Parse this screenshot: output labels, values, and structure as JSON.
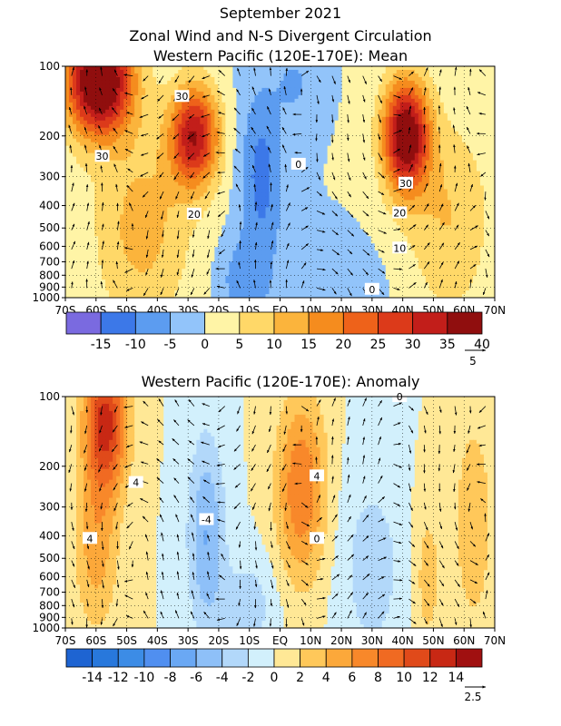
{
  "figure": {
    "title_line1": "September 2021",
    "title_line2": "Zonal Wind and N-S Divergent Circulation",
    "title_line3": "Western Pacific (120E-170E): Mean",
    "panel2_title": "Western Pacific (120E-170E): Anomaly",
    "mean_vector_ref": "5",
    "anom_vector_ref": "2.5"
  },
  "chart_data": [
    {
      "type": "heatmap",
      "title": "Western Pacific (120E-170E): Mean",
      "x_ticks": [
        "70S",
        "60S",
        "50S",
        "40S",
        "30S",
        "20S",
        "10S",
        "EQ",
        "10N",
        "20N",
        "30N",
        "40N",
        "50N",
        "60N",
        "70N"
      ],
      "x_values": [
        -70,
        -60,
        -50,
        -40,
        -30,
        -20,
        -10,
        0,
        10,
        20,
        30,
        40,
        50,
        60,
        70
      ],
      "y_ticks": [
        "100",
        "200",
        "300",
        "400",
        "500",
        "600",
        "700",
        "800",
        "900",
        "1000"
      ],
      "y_values_hPa": [
        100,
        200,
        300,
        400,
        500,
        600,
        700,
        800,
        900,
        1000
      ],
      "y_scale": "log",
      "xlim": [
        -70,
        70
      ],
      "ylim_hPa": [
        1000,
        100
      ],
      "grid": true,
      "colorbar": {
        "labels": [
          "-15",
          "-10",
          "-5",
          "0",
          "5",
          "10",
          "15",
          "20",
          "25",
          "30",
          "35",
          "40"
        ],
        "levels": [
          -20,
          -15,
          -10,
          -5,
          0,
          5,
          10,
          15,
          20,
          25,
          30,
          35,
          40,
          45
        ],
        "colors": [
          "#7a6ae0",
          "#3c78e8",
          "#5c9cf0",
          "#92c4fa",
          "#fff4a6",
          "#ffd868",
          "#fbb43c",
          "#f58c1e",
          "#ee621a",
          "#dc3a1a",
          "#c21e1a",
          "#900e0e"
        ]
      },
      "contour_labels": [
        {
          "text": "30",
          "lat": -32,
          "p": 135
        },
        {
          "text": "30",
          "lat": -58,
          "p": 245
        },
        {
          "text": "20",
          "lat": -28,
          "p": 435
        },
        {
          "text": "0",
          "lat": 6,
          "p": 265
        },
        {
          "text": "30",
          "lat": 41,
          "p": 320
        },
        {
          "text": "20",
          "lat": 39,
          "p": 430
        },
        {
          "text": "10",
          "lat": 39,
          "p": 610
        },
        {
          "text": "0",
          "lat": 30,
          "p": 920
        }
      ],
      "features": [
        {
          "name": "southern westerly jet",
          "lat": -59,
          "p": 110,
          "max": 45
        },
        {
          "name": "subtropical jet south",
          "lat": -28,
          "p": 200,
          "max": 37
        },
        {
          "name": "subtropical jet north",
          "lat": 41,
          "p": 200,
          "max": 42
        },
        {
          "name": "equatorial easterlies",
          "lat": -6,
          "p": 280,
          "min": -12
        }
      ]
    },
    {
      "type": "heatmap",
      "title": "Western Pacific (120E-170E): Anomaly",
      "x_ticks": [
        "70S",
        "60S",
        "50S",
        "40S",
        "30S",
        "20S",
        "10S",
        "EQ",
        "10N",
        "20N",
        "30N",
        "40N",
        "50N",
        "60N",
        "70N"
      ],
      "x_values": [
        -70,
        -60,
        -50,
        -40,
        -30,
        -20,
        -10,
        0,
        10,
        20,
        30,
        40,
        50,
        60,
        70
      ],
      "y_ticks": [
        "100",
        "200",
        "300",
        "400",
        "500",
        "600",
        "700",
        "800",
        "900",
        "1000"
      ],
      "y_values_hPa": [
        100,
        200,
        300,
        400,
        500,
        600,
        700,
        800,
        900,
        1000
      ],
      "y_scale": "log",
      "xlim": [
        -70,
        70
      ],
      "ylim_hPa": [
        1000,
        100
      ],
      "grid": true,
      "colorbar": {
        "labels": [
          "-14",
          "-12",
          "-10",
          "-8",
          "-6",
          "-4",
          "-2",
          "0",
          "2",
          "4",
          "6",
          "8",
          "10",
          "12",
          "14"
        ],
        "levels": [
          -16,
          -14,
          -12,
          -10,
          -8,
          -6,
          -4,
          -2,
          0,
          2,
          4,
          6,
          8,
          10,
          12,
          14,
          16
        ],
        "colors": [
          "#1e64d2",
          "#2878dc",
          "#3c8ce6",
          "#508ff0",
          "#6aa8f4",
          "#8ec0f8",
          "#b2d8fa",
          "#d2f0fc",
          "#ffe896",
          "#ffc85a",
          "#fca83a",
          "#f8882a",
          "#f06a22",
          "#e04a1a",
          "#c82814",
          "#a01010"
        ]
      },
      "contour_labels": [
        {
          "text": "4",
          "lat": -47,
          "p": 235
        },
        {
          "text": "4",
          "lat": -62,
          "p": 410
        },
        {
          "text": "-4",
          "lat": -24,
          "p": 340
        },
        {
          "text": "4",
          "lat": 12,
          "p": 220
        },
        {
          "text": "0",
          "lat": 12,
          "p": 410
        },
        {
          "text": "0",
          "lat": 39,
          "p": 100
        }
      ],
      "features": [
        {
          "name": "anomaly southern jet",
          "lat": -57,
          "p": 130,
          "max": 12
        },
        {
          "name": "anomaly negative 30S-10S",
          "lat": -24,
          "p": 400,
          "min": -6
        },
        {
          "name": "anomaly positive EQ-20N",
          "lat": 8,
          "p": 260,
          "max": 8
        },
        {
          "name": "anomaly negative north",
          "lat": 32,
          "p": 500,
          "min": -3
        }
      ]
    }
  ]
}
